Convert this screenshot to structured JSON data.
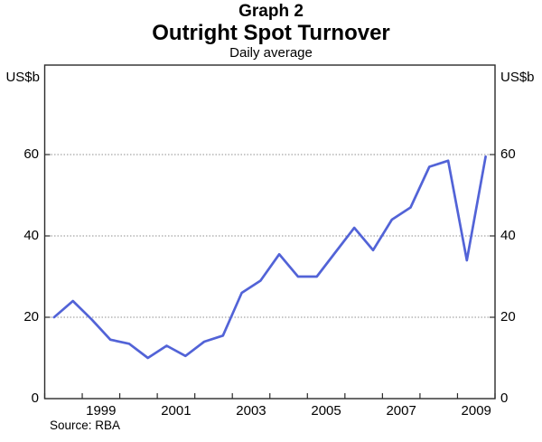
{
  "header": {
    "graph_number": "Graph 2",
    "title": "Outright Spot Turnover",
    "subtitle": "Daily average"
  },
  "axes": {
    "unit_left": "US$b",
    "unit_right": "US$b"
  },
  "source": "Source: RBA",
  "chart_data": {
    "type": "line",
    "title": "Outright Spot Turnover",
    "subtitle": "Daily average",
    "ylabel": "US$b",
    "ylim": [
      0,
      82
    ],
    "yticks": [
      0,
      20,
      40,
      60
    ],
    "xlim": [
      1998,
      2010
    ],
    "xtick_years": [
      1998,
      1999,
      2000,
      2001,
      2002,
      2003,
      2004,
      2005,
      2006,
      2007,
      2008,
      2009,
      2010
    ],
    "xlabels": [
      "1999",
      "2001",
      "2003",
      "2005",
      "2007",
      "2009"
    ],
    "xlabel_years": [
      1999,
      2001,
      2003,
      2005,
      2007,
      2009
    ],
    "grid": "horizontal-dotted",
    "legend_position": "none",
    "line_color": "#5263d7",
    "series": [
      {
        "name": "Outright spot turnover (daily average)",
        "frequency": "semi-annual",
        "x": [
          1998.25,
          1998.75,
          1999.25,
          1999.75,
          2000.25,
          2000.75,
          2001.25,
          2001.75,
          2002.25,
          2002.75,
          2003.25,
          2003.75,
          2004.25,
          2004.75,
          2005.25,
          2005.75,
          2006.25,
          2006.75,
          2007.25,
          2007.75,
          2008.25,
          2008.75,
          2009.25,
          2009.75
        ],
        "values": [
          20,
          24,
          19.5,
          14.5,
          13.5,
          10,
          13,
          10.5,
          14,
          15.5,
          26,
          29,
          35.5,
          30,
          30,
          36,
          42,
          36.5,
          44,
          47,
          57,
          58.5,
          34,
          59.5
        ]
      }
    ]
  }
}
